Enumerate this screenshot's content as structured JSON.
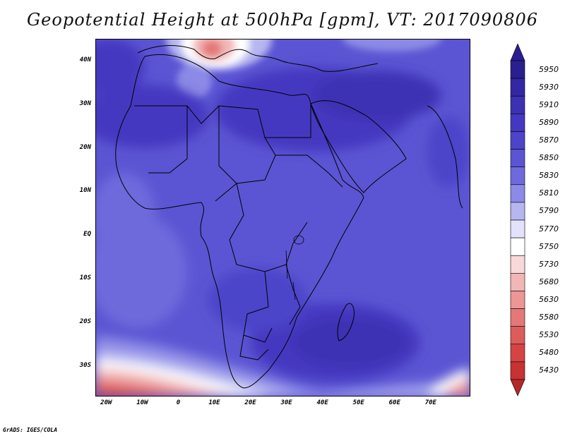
{
  "title": "Geopotential Height at 500hPa [gpm], VT: 2017090806",
  "credit": "GrADS: IGES/COLA",
  "map": {
    "variable": "Geopotential Height",
    "level": "500hPa",
    "units": "gpm",
    "valid_time": "2017090806",
    "lat_range": [
      -37,
      45
    ],
    "lon_range": [
      -23,
      81
    ],
    "lat_ticks": [
      {
        "value": 40,
        "label": "40N"
      },
      {
        "value": 30,
        "label": "30N"
      },
      {
        "value": 20,
        "label": "20N"
      },
      {
        "value": 10,
        "label": "10N"
      },
      {
        "value": 0,
        "label": "EQ"
      },
      {
        "value": -10,
        "label": "10S"
      },
      {
        "value": -20,
        "label": "20S"
      },
      {
        "value": -30,
        "label": "30S"
      }
    ],
    "lon_ticks": [
      {
        "value": -20,
        "label": "20W"
      },
      {
        "value": -10,
        "label": "10W"
      },
      {
        "value": 0,
        "label": "0"
      },
      {
        "value": 10,
        "label": "10E"
      },
      {
        "value": 20,
        "label": "20E"
      },
      {
        "value": 30,
        "label": "30E"
      },
      {
        "value": 40,
        "label": "40E"
      },
      {
        "value": 50,
        "label": "50E"
      },
      {
        "value": 60,
        "label": "60E"
      },
      {
        "value": 70,
        "label": "70E"
      }
    ]
  },
  "colorbar": {
    "levels": [
      {
        "label": "5950",
        "color": "#2a1f8f"
      },
      {
        "label": "5930",
        "color": "#3327a3"
      },
      {
        "label": "5910",
        "color": "#3c30b3"
      },
      {
        "label": "5890",
        "color": "#4438c0"
      },
      {
        "label": "5870",
        "color": "#4c44c9"
      },
      {
        "label": "5850",
        "color": "#5b55d3"
      },
      {
        "label": "5830",
        "color": "#6e6adc"
      },
      {
        "label": "5810",
        "color": "#8c8ae6"
      },
      {
        "label": "5790",
        "color": "#b6b6f1"
      },
      {
        "label": "5770",
        "color": "#e2e2fb"
      },
      {
        "label": "5750",
        "color": "#ffffff"
      },
      {
        "label": "5730",
        "color": "#f8d8d8"
      },
      {
        "label": "5680",
        "color": "#f2b6b6"
      },
      {
        "label": "5630",
        "color": "#ec9696"
      },
      {
        "label": "5580",
        "color": "#e47878"
      },
      {
        "label": "5530",
        "color": "#dc5c5c"
      },
      {
        "label": "5480",
        "color": "#d44444"
      },
      {
        "label": "5430",
        "color": "#c73232"
      }
    ],
    "upper_arrow_color": "#2a1f8f",
    "lower_arrow_color": "#b52828"
  }
}
